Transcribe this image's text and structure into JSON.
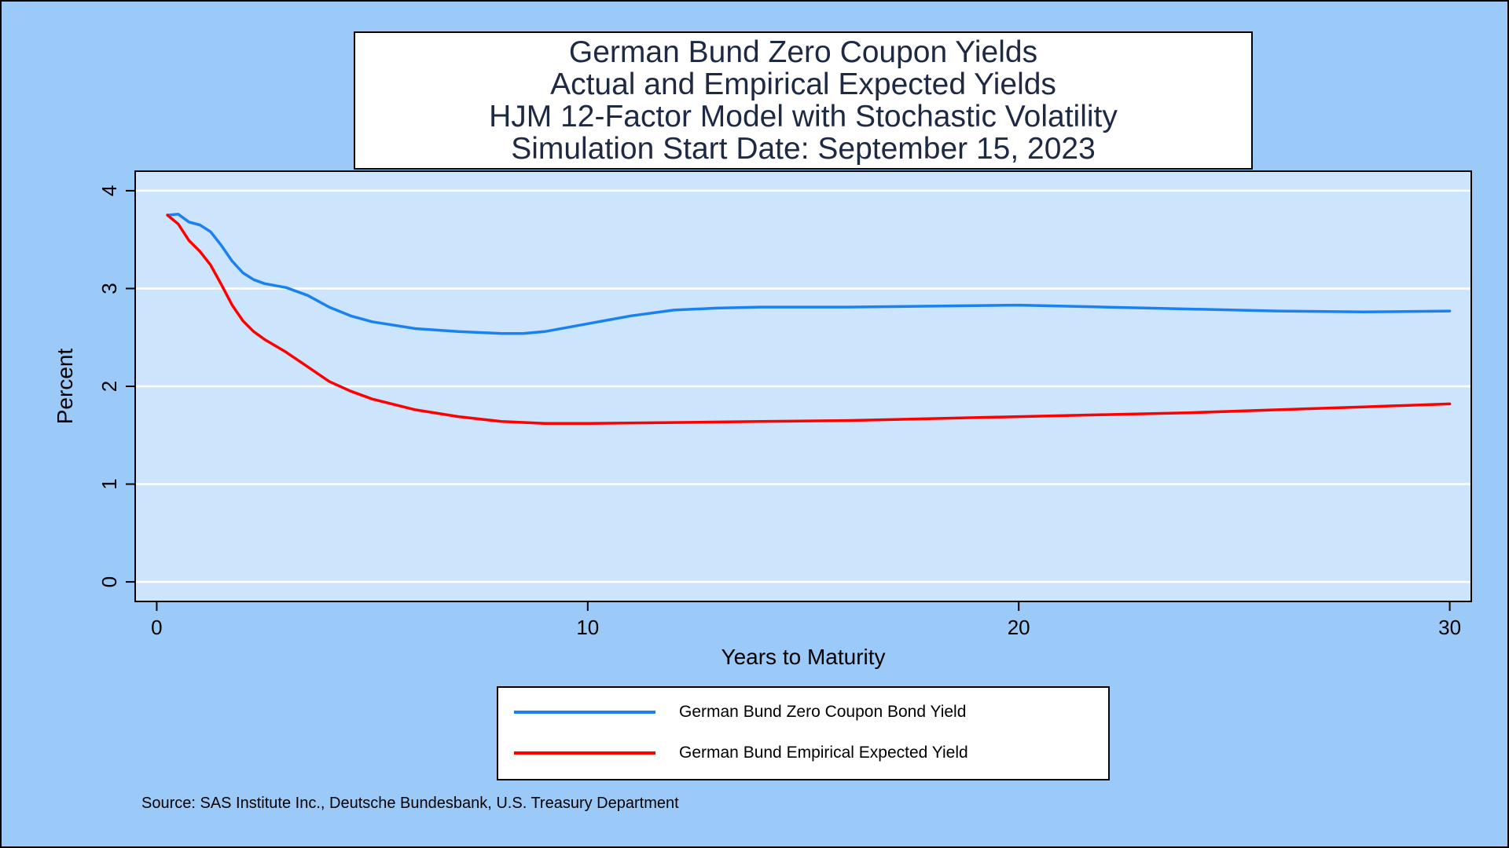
{
  "title_lines": [
    "German Bund Zero Coupon Yields",
    "Actual and Empirical Expected Yields",
    "HJM 12-Factor Model with Stochastic Volatility",
    "Simulation Start Date: September 15, 2023"
  ],
  "source": "Source: SAS Institute Inc., Deutsche Bundesbank, U.S. Treasury Department",
  "chart_data": {
    "type": "line",
    "title": "German Bund Zero Coupon Yields\nActual and Empirical Expected Yields\nHJM 12-Factor Model with Stochastic Volatility\nSimulation Start Date: September 15, 2023",
    "xlabel": "Years to Maturity",
    "ylabel": "Percent",
    "xlim": [
      -0.5,
      30.5
    ],
    "ylim": [
      -0.2,
      4.2
    ],
    "xticks": [
      0,
      10,
      20,
      30
    ],
    "yticks": [
      0,
      1,
      2,
      3,
      4
    ],
    "grid": "horizontal",
    "legend_position": "bottom",
    "colors": {
      "background": "#9ccaf8",
      "plot_background": "#cce4fc",
      "grid": "#ffffff"
    },
    "series": [
      {
        "name": "German Bund Zero Coupon Bond Yield",
        "color": "#1a82f0",
        "x": [
          0.25,
          0.5,
          0.75,
          1,
          1.25,
          1.5,
          1.75,
          2,
          2.25,
          2.5,
          3,
          3.5,
          4,
          4.5,
          5,
          6,
          7,
          8,
          8.5,
          9,
          10,
          11,
          12,
          13,
          14,
          16,
          18,
          20,
          22,
          24,
          26,
          28,
          30
        ],
        "values": [
          3.75,
          3.76,
          3.68,
          3.65,
          3.58,
          3.44,
          3.28,
          3.16,
          3.09,
          3.05,
          3.01,
          2.93,
          2.81,
          2.72,
          2.66,
          2.59,
          2.56,
          2.54,
          2.54,
          2.56,
          2.64,
          2.72,
          2.78,
          2.8,
          2.81,
          2.81,
          2.82,
          2.83,
          2.81,
          2.79,
          2.77,
          2.76,
          2.77
        ]
      },
      {
        "name": "German Bund Empirical Expected Yield",
        "color": "#ff0000",
        "x": [
          0.25,
          0.5,
          0.75,
          1,
          1.25,
          1.5,
          1.75,
          2,
          2.25,
          2.5,
          3,
          3.5,
          4,
          4.5,
          5,
          6,
          7,
          8,
          9,
          10,
          12,
          14,
          16,
          18,
          20,
          22,
          24,
          26,
          28,
          30
        ],
        "values": [
          3.75,
          3.66,
          3.49,
          3.38,
          3.24,
          3.04,
          2.83,
          2.67,
          2.56,
          2.48,
          2.35,
          2.2,
          2.05,
          1.95,
          1.87,
          1.76,
          1.69,
          1.64,
          1.62,
          1.62,
          1.63,
          1.64,
          1.65,
          1.67,
          1.69,
          1.71,
          1.73,
          1.76,
          1.79,
          1.82
        ]
      }
    ]
  }
}
